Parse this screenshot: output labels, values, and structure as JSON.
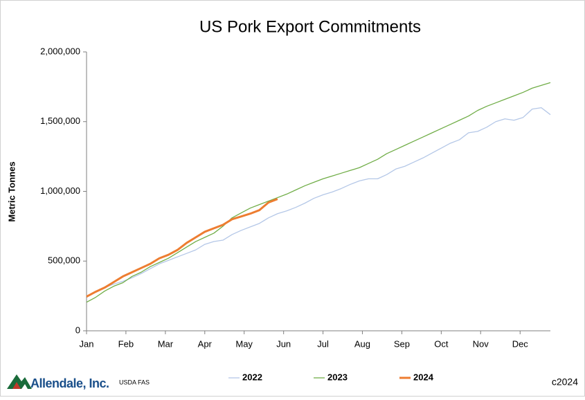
{
  "chart_data": {
    "type": "line",
    "title": "US Pork Export Commitments",
    "y_label": "Metric Tonnes",
    "source": "USDA FAS",
    "brand": "Allendale, Inc.",
    "copyright": "c2024",
    "x": [
      0,
      1,
      2,
      3,
      4,
      5,
      6,
      7,
      8,
      9,
      10,
      11,
      12,
      13,
      14,
      15,
      16,
      17,
      18,
      19,
      20,
      21,
      22,
      23,
      24,
      25,
      26,
      27,
      28,
      29,
      30,
      31,
      32,
      33,
      34,
      35,
      36,
      37,
      38,
      39,
      40,
      41,
      42,
      43,
      44,
      45,
      46,
      47,
      48,
      49,
      50,
      51
    ],
    "xlim": [
      0,
      51
    ],
    "xticks": [
      {
        "value": 0,
        "label": "Jan"
      },
      {
        "value": 4.33,
        "label": "Feb"
      },
      {
        "value": 8.67,
        "label": "Mar"
      },
      {
        "value": 13,
        "label": "Apr"
      },
      {
        "value": 17.33,
        "label": "May"
      },
      {
        "value": 21.67,
        "label": "Jun"
      },
      {
        "value": 26,
        "label": "Jul"
      },
      {
        "value": 30.33,
        "label": "Aug"
      },
      {
        "value": 34.67,
        "label": "Sep"
      },
      {
        "value": 39,
        "label": "Oct"
      },
      {
        "value": 43.33,
        "label": "Nov"
      },
      {
        "value": 47.67,
        "label": "Dec"
      }
    ],
    "ylim": [
      0,
      2000000
    ],
    "yticks": [
      0,
      {
        "value": 500000,
        "label": "500,000"
      },
      {
        "value": 1000000,
        "label": "1,000,000"
      },
      {
        "value": 1500000,
        "label": "1,500,000"
      },
      {
        "value": 2000000,
        "label": "2,000,000"
      }
    ],
    "grid": false,
    "legend": "bottom",
    "series": [
      {
        "name": "2022",
        "color": "#b4c7e7",
        "width": 1.3,
        "values": [
          250000,
          275000,
          310000,
          335000,
          355000,
          380000,
          410000,
          445000,
          480000,
          505000,
          530000,
          555000,
          580000,
          620000,
          640000,
          650000,
          690000,
          720000,
          745000,
          770000,
          810000,
          840000,
          860000,
          885000,
          915000,
          950000,
          975000,
          995000,
          1020000,
          1050000,
          1075000,
          1090000,
          1090000,
          1120000,
          1160000,
          1180000,
          1210000,
          1240000,
          1275000,
          1310000,
          1345000,
          1370000,
          1420000,
          1430000,
          1460000,
          1500000,
          1520000,
          1510000,
          1530000,
          1590000,
          1600000,
          1550000
        ]
      },
      {
        "name": "2023",
        "color": "#70ad47",
        "width": 1.3,
        "values": [
          205000,
          240000,
          285000,
          320000,
          345000,
          390000,
          420000,
          460000,
          490000,
          520000,
          560000,
          600000,
          640000,
          670000,
          700000,
          750000,
          810000,
          845000,
          880000,
          905000,
          930000,
          955000,
          980000,
          1010000,
          1040000,
          1065000,
          1090000,
          1110000,
          1130000,
          1150000,
          1170000,
          1200000,
          1230000,
          1270000,
          1300000,
          1330000,
          1360000,
          1390000,
          1420000,
          1450000,
          1480000,
          1510000,
          1540000,
          1580000,
          1610000,
          1635000,
          1660000,
          1685000,
          1710000,
          1740000,
          1760000,
          1780000
        ]
      },
      {
        "name": "2024",
        "color": "#ed7d31",
        "width": 3,
        "values": [
          245000,
          280000,
          310000,
          350000,
          390000,
          420000,
          450000,
          480000,
          520000,
          545000,
          580000,
          630000,
          670000,
          710000,
          735000,
          760000,
          800000,
          820000,
          840000,
          865000,
          920000,
          945000,
          null,
          null,
          null,
          null,
          null,
          null,
          null,
          null,
          null,
          null,
          null,
          null,
          null,
          null,
          null,
          null,
          null,
          null,
          null,
          null,
          null,
          null,
          null,
          null,
          null,
          null,
          null,
          null,
          null,
          null
        ]
      }
    ]
  }
}
